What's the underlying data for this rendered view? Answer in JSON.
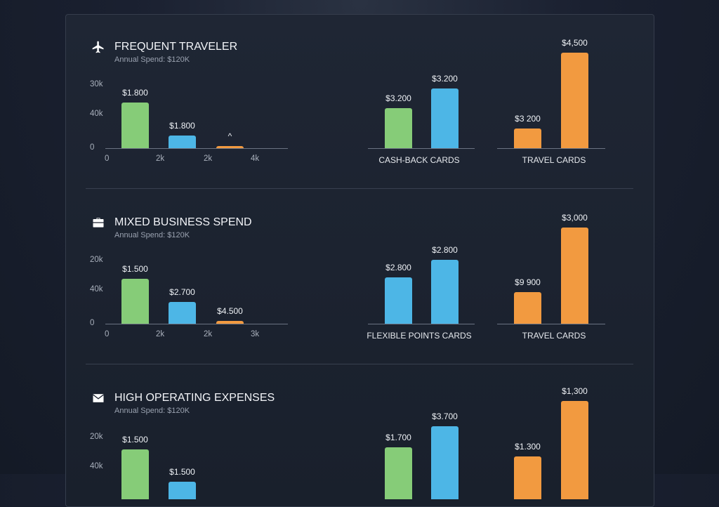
{
  "colors": {
    "green": "#86cc78",
    "blue": "#4db6e6",
    "orange": "#f29a40",
    "background": "#1a2030"
  },
  "chart_data": [
    {
      "type": "bar",
      "title": "FREQUENT TRAVELER",
      "subtitle": "Annual Spend: $120K",
      "icon": "airplane-icon",
      "left": {
        "yticks": [
          "30k",
          "40k",
          "0"
        ],
        "xticks": [
          "0",
          "2k",
          "2k",
          "4k"
        ],
        "bars": [
          {
            "label": "$1.800",
            "color": "green"
          },
          {
            "label": "$1.800",
            "color": "blue"
          },
          {
            "label": "^",
            "color": "orange"
          }
        ]
      },
      "groups": [
        {
          "category": "CASH-BACK CARDS",
          "bars": [
            {
              "label": "$3.200",
              "color": "green"
            },
            {
              "label": "$3.200",
              "color": "blue"
            }
          ]
        },
        {
          "category": "TRAVEL CARDS",
          "bars": [
            {
              "label": "$3 200",
              "color": "orange"
            },
            {
              "label": "$4,500",
              "color": "orange"
            }
          ]
        }
      ]
    },
    {
      "type": "bar",
      "title": "MIXED BUSINESS SPEND",
      "subtitle": "Annual Spend: $120K",
      "icon": "briefcase-icon",
      "left": {
        "yticks": [
          "20k",
          "40k",
          "0"
        ],
        "xticks": [
          "0",
          "2k",
          "2k",
          "3k"
        ],
        "bars": [
          {
            "label": "$1.500",
            "color": "green"
          },
          {
            "label": "$2.700",
            "color": "blue"
          },
          {
            "label": "$4.500",
            "color": "orange"
          }
        ]
      },
      "groups": [
        {
          "category": "FLEXIBLE POINTS CARDS",
          "bars": [
            {
              "label": "$2.800",
              "color": "blue"
            },
            {
              "label": "$2.800",
              "color": "blue"
            }
          ]
        },
        {
          "category": "TRAVEL CARDS",
          "bars": [
            {
              "label": "$9 900",
              "color": "orange"
            },
            {
              "label": "$3,000",
              "color": "orange"
            }
          ]
        }
      ]
    },
    {
      "type": "bar",
      "title": "HIGH OPERATING EXPENSES",
      "subtitle": "Annual Spend: $120K",
      "icon": "envelope-icon",
      "left": {
        "yticks": [
          "20k",
          "40k"
        ],
        "xticks": [],
        "bars": [
          {
            "label": "$1.500",
            "color": "green"
          },
          {
            "label": "$1.500",
            "color": "blue"
          }
        ]
      },
      "groups": [
        {
          "category": "",
          "bars": [
            {
              "label": "$1.700",
              "color": "green"
            },
            {
              "label": "$3.700",
              "color": "blue"
            }
          ]
        },
        {
          "category": "",
          "bars": [
            {
              "label": "$1.300",
              "color": "orange"
            },
            {
              "label": "$1,300",
              "color": "orange"
            }
          ]
        }
      ]
    }
  ]
}
